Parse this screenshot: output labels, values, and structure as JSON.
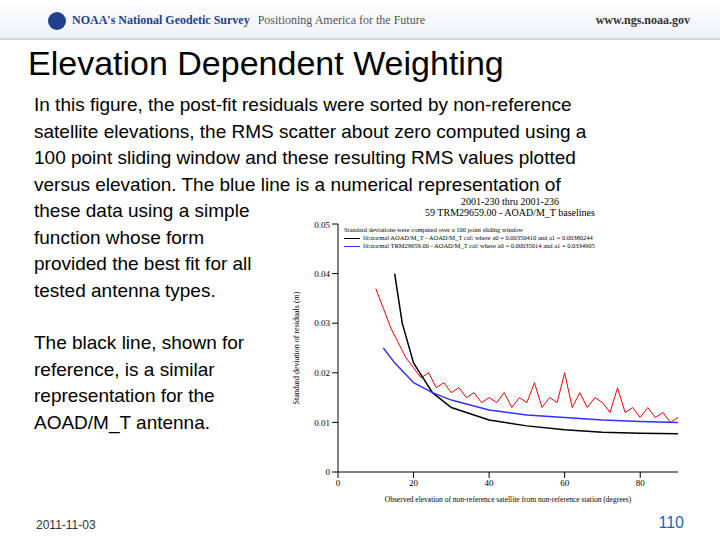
{
  "slide": {
    "header_left": "NOAA's National Geodetic Survey",
    "header_tagline": "Positioning America for the Future",
    "header_right": "www.ngs.noaa.gov",
    "title": "Elevation Dependent Weighting",
    "paragraphs": [
      [
        "In this figure, the post-fit residuals were sorted by non-reference",
        "satellite elevations, the RMS scatter about zero computed using a",
        "100 point sliding window and these resulting RMS values plotted",
        "versus elevation. The blue line is a numerical representation of",
        "these data using a simple",
        "function whose form",
        "provided the best fit for all",
        "tested antenna types."
      ],
      [
        "The black line, shown for",
        "reference, is a similar",
        "representation for the",
        "AOAD/M_T antenna."
      ]
    ],
    "footer_date": "2011-11-03",
    "page": "110"
  },
  "chart_data": {
    "type": "line",
    "title": "2001-230 thru 2001-236",
    "subtitle": "59 TRM29659.00 - AOAD/M_T baselines",
    "x_label": "Observed elevation of non-reference satellite from non-reference station (degrees)",
    "y_label": "Standard deviation of residuals (m)",
    "annotations": [
      "Standard deviations were computed over a 100 point sliding window"
    ],
    "xlim": [
      0,
      90
    ],
    "xticks": [
      0,
      20,
      40,
      60,
      80
    ],
    "ylim": [
      0,
      0.05
    ],
    "yticks": [
      0,
      0.01,
      0.02,
      0.03,
      0.04,
      0.05
    ],
    "grid": false,
    "series": [
      {
        "color": "#ff0000",
        "x": [
          10,
          12,
          14,
          16,
          18,
          20,
          22,
          24,
          26,
          28,
          30,
          32,
          34,
          36,
          38,
          40,
          42,
          44,
          46,
          48,
          50,
          52,
          54,
          56,
          58,
          60,
          62,
          64,
          66,
          68,
          70,
          72,
          74,
          76,
          78,
          80,
          82,
          84,
          86,
          88,
          90
        ],
        "values": [
          0.037,
          0.033,
          0.029,
          0.026,
          0.023,
          0.021,
          0.019,
          0.02,
          0.017,
          0.018,
          0.016,
          0.017,
          0.015,
          0.016,
          0.014,
          0.015,
          0.014,
          0.016,
          0.013,
          0.015,
          0.014,
          0.018,
          0.013,
          0.015,
          0.014,
          0.02,
          0.013,
          0.016,
          0.013,
          0.015,
          0.014,
          0.012,
          0.017,
          0.012,
          0.013,
          0.011,
          0.013,
          0.011,
          0.012,
          0.01,
          0.011
        ]
      },
      {
        "name": "fit:normal AOAD/M_T - AOAD/M_T cal: where a0 = 0.00350410 and a1 = 0.00380244",
        "color": "#000000",
        "x": [
          15,
          17,
          20,
          25,
          30,
          40,
          50,
          60,
          70,
          80,
          90
        ],
        "values": [
          0.04,
          0.03,
          0.022,
          0.016,
          0.013,
          0.0105,
          0.0093,
          0.0085,
          0.008,
          0.0078,
          0.0077
        ]
      },
      {
        "name": "fit:normal TRM29659.00 - AOAD/M_T cal: where a0 = 0.00035014 and a1 = 0.0334905",
        "color": "#3030ff",
        "x": [
          12,
          15,
          20,
          25,
          30,
          40,
          50,
          60,
          70,
          80,
          90
        ],
        "values": [
          0.025,
          0.022,
          0.018,
          0.016,
          0.0145,
          0.0125,
          0.0115,
          0.011,
          0.0105,
          0.0102,
          0.01
        ]
      }
    ]
  }
}
